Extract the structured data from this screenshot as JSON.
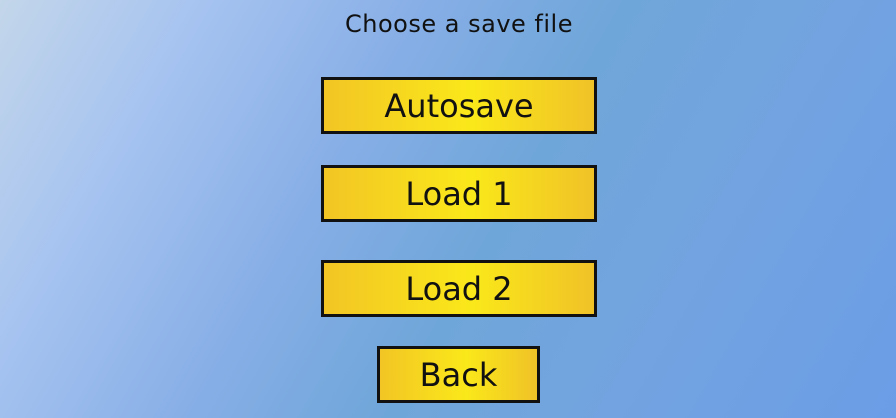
{
  "menu": {
    "title": "Choose a save file",
    "buttons": {
      "autosave": "Autosave",
      "load1": "Load 1",
      "load2": "Load 2",
      "back": "Back"
    }
  },
  "colors": {
    "button_fill": "#f9e21c",
    "button_border": "#111111",
    "background_accent": "#6fa6d9"
  }
}
